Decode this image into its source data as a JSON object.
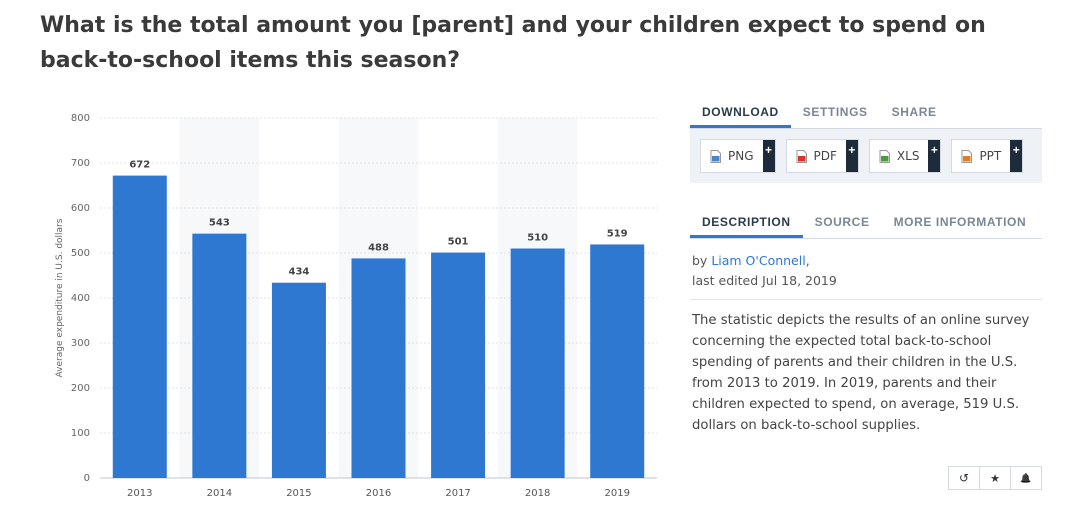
{
  "title": "What is the total amount you [parent] and your children expect to spend on back-to-school items this season?",
  "chart_data": {
    "type": "bar",
    "categories": [
      "2013",
      "2014",
      "2015",
      "2016",
      "2017",
      "2018",
      "2019"
    ],
    "values": [
      672,
      543,
      434,
      488,
      501,
      510,
      519
    ],
    "data_labels": [
      "672",
      "543",
      "434",
      "488",
      "501",
      "510",
      "519"
    ],
    "ylabel": "Average expenditure in U.S. dollars",
    "xlabel": "",
    "ylim": [
      0,
      800
    ],
    "yticks": [
      0,
      100,
      200,
      300,
      400,
      500,
      600,
      700,
      800
    ],
    "grid": true,
    "bar_color": "#2e78d2"
  },
  "download_tabs": [
    "DOWNLOAD",
    "SETTINGS",
    "SHARE"
  ],
  "download_buttons": [
    {
      "label": "PNG",
      "icon": "png-file-icon",
      "color": "#4a86c5"
    },
    {
      "label": "PDF",
      "icon": "pdf-file-icon",
      "color": "#d9342b"
    },
    {
      "label": "XLS",
      "icon": "xls-file-icon",
      "color": "#4c9a3f"
    },
    {
      "label": "PPT",
      "icon": "ppt-file-icon",
      "color": "#e07b26"
    }
  ],
  "plus_label": "+",
  "info_tabs": [
    "DESCRIPTION",
    "SOURCE",
    "MORE INFORMATION"
  ],
  "description": {
    "by": "by ",
    "author": "Liam O'Connell",
    "after_author": ",",
    "edited": "last edited Jul 18, 2019",
    "text": "The statistic depicts the results of an online survey concerning the expected total back-to-school spending of parents and their children in the U.S. from 2013 to 2019. In 2019, parents and their children expected to spend, on average, 519 U.S. dollars on back-to-school supplies."
  },
  "actions": [
    {
      "name": "history-icon",
      "glyph": "↺"
    },
    {
      "name": "star-icon",
      "glyph": "★"
    },
    {
      "name": "bell-icon",
      "glyph": "🔔"
    }
  ]
}
